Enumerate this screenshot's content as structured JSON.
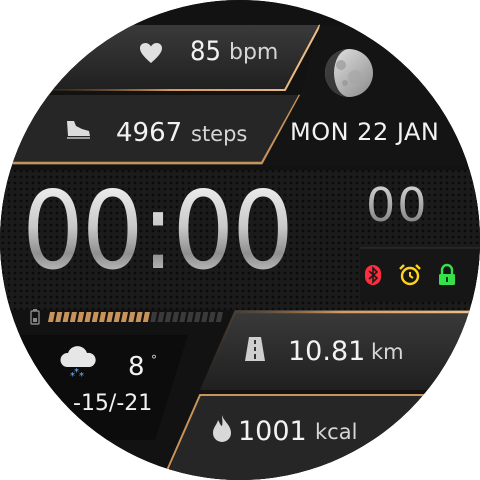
{
  "heart_rate": {
    "value": "85",
    "unit": "bpm",
    "icon": "heart-icon"
  },
  "steps": {
    "value": "4967",
    "unit": "steps",
    "icon": "shoe-icon"
  },
  "date": "MON 22 JAN",
  "time": {
    "hm": "00:00",
    "seconds": "00"
  },
  "status_icons": [
    {
      "name": "bluetooth-icon",
      "color": "#ff2d3d"
    },
    {
      "name": "alarm-icon",
      "color": "#ffd21f"
    },
    {
      "name": "lock-icon",
      "color": "#35e04a"
    }
  ],
  "battery": {
    "icon": "battery-icon",
    "level": 0.58
  },
  "weather": {
    "icon": "snow-cloud-icon",
    "temperature": "8",
    "degree": "°",
    "range": "-15/-21"
  },
  "distance": {
    "value": "10.81",
    "unit": "km",
    "icon": "road-icon"
  },
  "calories": {
    "value": "1001",
    "unit": "kcal",
    "icon": "flame-icon"
  },
  "moon": {
    "icon": "moon-phase-icon"
  },
  "colors": {
    "accent_gold": "#c8935a",
    "panel": "#2b2b2b",
    "text": "#f2f2f2"
  }
}
